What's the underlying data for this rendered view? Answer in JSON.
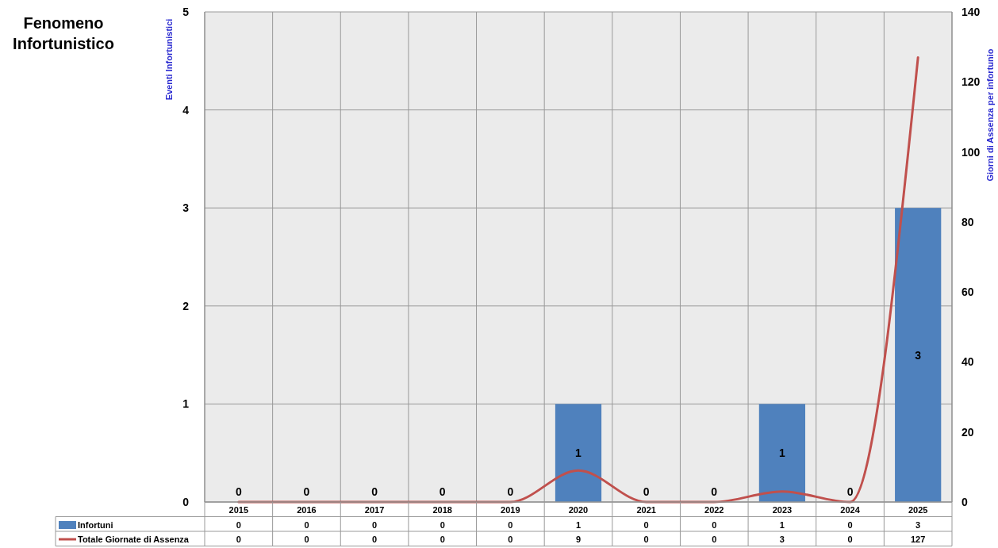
{
  "chart_data": {
    "type": "bar",
    "title": "Fenomeno Infortunistico",
    "ylabel": "Eventi Infortunistici",
    "y2label": "Giorni di Assenza per infortunio",
    "categories": [
      "2015",
      "2016",
      "2017",
      "2018",
      "2019",
      "2020",
      "2021",
      "2022",
      "2023",
      "2024",
      "2025"
    ],
    "series": [
      {
        "name": "Infortuni",
        "color": "#4f81bd",
        "values": [
          0,
          0,
          0,
          0,
          0,
          1,
          0,
          0,
          1,
          0,
          3
        ]
      },
      {
        "name": "Totale Giornate di Assenza",
        "type": "line",
        "axis": "y2",
        "color": "#c0504d",
        "values": [
          0,
          0,
          0,
          0,
          0,
          9,
          0,
          0,
          3,
          0,
          127
        ]
      }
    ],
    "ylim": [
      0,
      5
    ],
    "yticks": [
      0,
      1,
      2,
      3,
      4,
      5
    ],
    "y2lim": [
      0,
      140
    ],
    "y2ticks": [
      0,
      20,
      40,
      60,
      80,
      100,
      120,
      140
    ],
    "annotations": [
      {
        "text": "0",
        "x": "2015",
        "y": 0
      },
      {
        "text": "0",
        "x": "2016",
        "y": 0
      },
      {
        "text": "0",
        "x": "2017",
        "y": 0
      },
      {
        "text": "0",
        "x": "2018",
        "y": 0
      },
      {
        "text": "0",
        "x": "2019",
        "y": 0
      },
      "1",
      {
        "text": "0",
        "x": "2021",
        "y": 0
      },
      {
        "text": "0",
        "x": "2022",
        "y": 0
      },
      "1",
      {
        "text": "0",
        "x": "2024",
        "y": 0
      },
      "3"
    ],
    "grid": true,
    "legend": "bottom",
    "data_labels": true
  }
}
